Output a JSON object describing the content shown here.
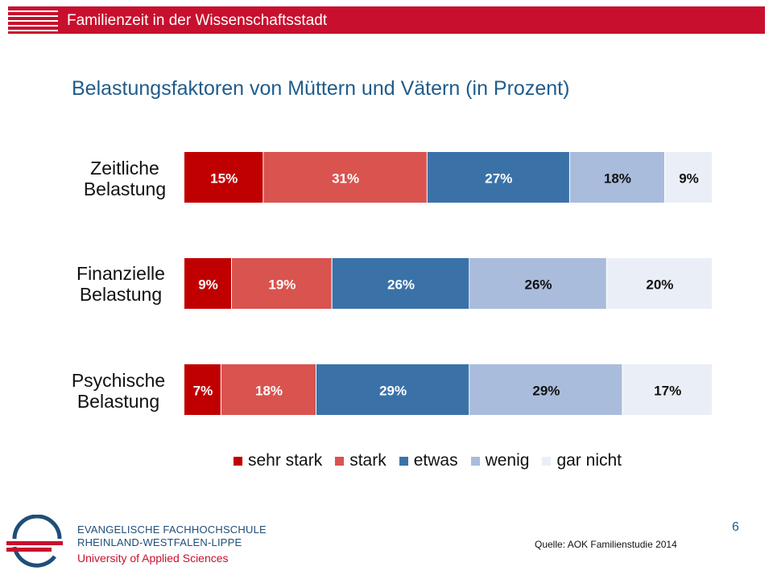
{
  "header": {
    "title": "Familienzeit in der Wissenschaftsstadt"
  },
  "slide": {
    "title": "Belastungsfaktoren von Müttern und Vätern (in Prozent)",
    "page_number": "6"
  },
  "source": "Quelle:  AOK Familienstudie 2014",
  "institution": {
    "line1": "EVANGELISCHE FACHHOCHSCHULE",
    "line2": "RHEINLAND-WESTFALEN-LIPPE",
    "line3": "University of Applied Sciences"
  },
  "colors": {
    "brand_red": "#c8102e",
    "title_blue": "#1f5c8c",
    "series": [
      "#c00000",
      "#d9534f",
      "#3a72a8",
      "#a9bcdc",
      "#eaeff7"
    ]
  },
  "chart_data": {
    "type": "bar",
    "orientation": "horizontal-stacked-100",
    "title": "Belastungsfaktoren von Müttern und Vätern (in Prozent)",
    "categories": [
      [
        "Zeitliche",
        "Belastung"
      ],
      [
        "Finanzielle",
        "Belastung"
      ],
      [
        "Psychische",
        "Belastung"
      ]
    ],
    "series": [
      {
        "name": "sehr stark",
        "color": "#c00000",
        "values": [
          15,
          9,
          7
        ]
      },
      {
        "name": "stark",
        "color": "#d9534f",
        "values": [
          31,
          19,
          18
        ]
      },
      {
        "name": "etwas",
        "color": "#3a72a8",
        "values": [
          27,
          26,
          29
        ]
      },
      {
        "name": "wenig",
        "color": "#a9bcdc",
        "values": [
          18,
          26,
          29
        ]
      },
      {
        "name": "gar nicht",
        "color": "#eaeff7",
        "values": [
          9,
          20,
          17
        ]
      }
    ],
    "xlim": [
      0,
      100
    ],
    "value_suffix": "%",
    "legend_position": "bottom",
    "grid": false
  }
}
